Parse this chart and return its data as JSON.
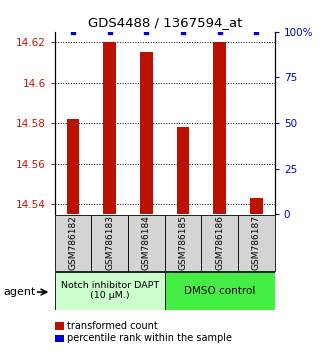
{
  "title": "GDS4488 / 1367594_at",
  "samples": [
    "GSM786182",
    "GSM786183",
    "GSM786184",
    "GSM786185",
    "GSM786186",
    "GSM786187"
  ],
  "red_values": [
    14.582,
    14.62,
    14.615,
    14.578,
    14.62,
    14.543
  ],
  "blue_values": [
    100,
    100,
    100,
    100,
    100,
    100
  ],
  "ylim_left": [
    14.535,
    14.625
  ],
  "ylim_right": [
    0,
    100
  ],
  "yticks_left": [
    14.54,
    14.56,
    14.58,
    14.6,
    14.62
  ],
  "yticks_right": [
    0,
    25,
    50,
    75,
    100
  ],
  "group1_label": "Notch inhibitor DAPT\n(10 μM.)",
  "group2_label": "DMSO control",
  "agent_label": "agent",
  "legend_red": "transformed count",
  "legend_blue": "percentile rank within the sample",
  "bar_color": "#bb1100",
  "dot_color": "#0000cc",
  "group1_color": "#ccffcc",
  "group2_color": "#44ee44",
  "bar_width": 0.35,
  "background_color": "#ffffff"
}
